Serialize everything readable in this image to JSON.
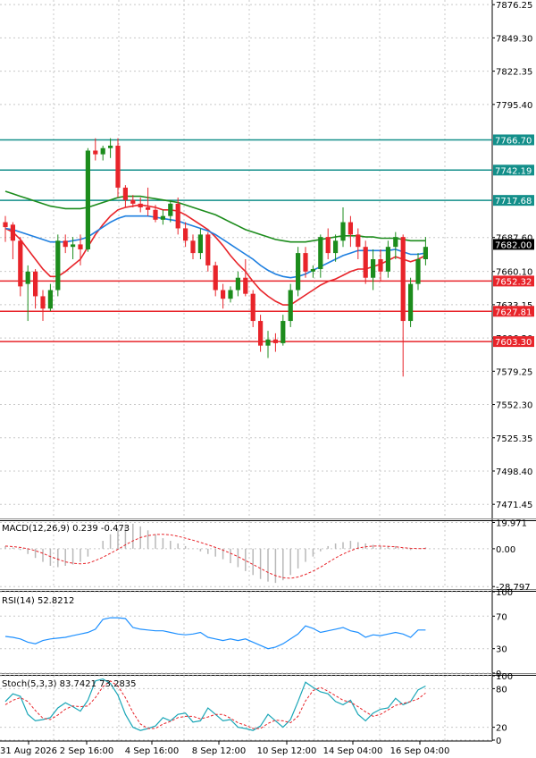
{
  "chart_data": {
    "type": "candlestick",
    "price_axis": {
      "ticks": [
        "7876.25",
        "7849.30",
        "7822.35",
        "7795.40",
        "7687.60",
        "7660.10",
        "7633.15",
        "7606.20",
        "7579.25",
        "7552.30",
        "7525.35",
        "7498.40",
        "7471.45"
      ],
      "range": [
        7460,
        7880
      ]
    },
    "current_price": {
      "label": "7682.00",
      "color": "#000000"
    },
    "levels": [
      {
        "label": "7766.70",
        "value": 7766.7,
        "color": "#138f8a"
      },
      {
        "label": "7742.19",
        "value": 7742.19,
        "color": "#138f8a"
      },
      {
        "label": "7717.68",
        "value": 7717.68,
        "color": "#138f8a"
      },
      {
        "label": "7652.32",
        "value": 7652.32,
        "color": "#e8242a"
      },
      {
        "label": "7627.81",
        "value": 7627.81,
        "color": "#e8242a"
      },
      {
        "label": "7603.30",
        "value": 7603.3,
        "color": "#e8242a"
      }
    ],
    "x_labels": [
      "31 Aug 2026",
      "2 Sep 16:00",
      "4 Sep 16:00",
      "8 Sep 12:00",
      "10 Sep 12:00",
      "14 Sep 04:00",
      "16 Sep 04:00"
    ],
    "candles": [
      [
        7700,
        7705,
        7684,
        7696
      ],
      [
        7698,
        7700,
        7670,
        7685
      ],
      [
        7685,
        7688,
        7640,
        7648
      ],
      [
        7650,
        7665,
        7620,
        7660
      ],
      [
        7660,
        7662,
        7630,
        7640
      ],
      [
        7640,
        7645,
        7620,
        7630
      ],
      [
        7630,
        7650,
        7628,
        7645
      ],
      [
        7645,
        7690,
        7640,
        7685
      ],
      [
        7685,
        7690,
        7675,
        7680
      ],
      [
        7680,
        7688,
        7670,
        7682
      ],
      [
        7682,
        7690,
        7665,
        7678
      ],
      [
        7678,
        7760,
        7676,
        7758
      ],
      [
        7758,
        7768,
        7750,
        7755
      ],
      [
        7755,
        7762,
        7750,
        7760
      ],
      [
        7760,
        7768,
        7752,
        7762
      ],
      [
        7762,
        7768,
        7720,
        7728
      ],
      [
        7728,
        7730,
        7712,
        7718
      ],
      [
        7718,
        7722,
        7712,
        7715
      ],
      [
        7715,
        7720,
        7708,
        7712
      ],
      [
        7712,
        7728,
        7705,
        7710
      ],
      [
        7710,
        7714,
        7700,
        7702
      ],
      [
        7702,
        7710,
        7698,
        7705
      ],
      [
        7705,
        7718,
        7700,
        7715
      ],
      [
        7715,
        7720,
        7690,
        7695
      ],
      [
        7695,
        7700,
        7680,
        7685
      ],
      [
        7685,
        7690,
        7670,
        7675
      ],
      [
        7675,
        7695,
        7670,
        7690
      ],
      [
        7690,
        7692,
        7660,
        7665
      ],
      [
        7665,
        7668,
        7640,
        7645
      ],
      [
        7645,
        7650,
        7630,
        7638
      ],
      [
        7638,
        7648,
        7635,
        7645
      ],
      [
        7645,
        7660,
        7640,
        7655
      ],
      [
        7655,
        7670,
        7640,
        7642
      ],
      [
        7642,
        7645,
        7615,
        7620
      ],
      [
        7620,
        7625,
        7595,
        7600
      ],
      [
        7600,
        7612,
        7590,
        7605
      ],
      [
        7605,
        7610,
        7595,
        7602
      ],
      [
        7602,
        7625,
        7600,
        7620
      ],
      [
        7620,
        7650,
        7615,
        7645
      ],
      [
        7645,
        7680,
        7640,
        7675
      ],
      [
        7675,
        7680,
        7655,
        7660
      ],
      [
        7660,
        7665,
        7655,
        7662
      ],
      [
        7662,
        7690,
        7655,
        7688
      ],
      [
        7688,
        7695,
        7670,
        7675
      ],
      [
        7675,
        7690,
        7668,
        7685
      ],
      [
        7685,
        7712,
        7680,
        7700
      ],
      [
        7700,
        7705,
        7680,
        7690
      ],
      [
        7690,
        7695,
        7670,
        7680
      ],
      [
        7680,
        7685,
        7650,
        7655
      ],
      [
        7655,
        7678,
        7645,
        7670
      ],
      [
        7670,
        7678,
        7652,
        7660
      ],
      [
        7660,
        7685,
        7655,
        7680
      ],
      [
        7680,
        7692,
        7670,
        7688
      ],
      [
        7688,
        7690,
        7575,
        7620
      ],
      [
        7620,
        7655,
        7615,
        7650
      ],
      [
        7650,
        7675,
        7645,
        7670
      ],
      [
        7670,
        7688,
        7665,
        7680
      ]
    ],
    "series": [
      {
        "name": "",
        "color": "#e8242a",
        "values": [
          7695,
          7692,
          7686,
          7678,
          7670,
          7662,
          7656,
          7656,
          7660,
          7665,
          7670,
          7680,
          7690,
          7698,
          7705,
          7710,
          7712,
          7713,
          7714,
          7713,
          7712,
          7710,
          7710,
          7709,
          7706,
          7702,
          7698,
          7694,
          7688,
          7681,
          7673,
          7666,
          7660,
          7652,
          7645,
          7640,
          7636,
          7633,
          7633,
          7637,
          7641,
          7645,
          7649,
          7652,
          7654,
          7657,
          7660,
          7662,
          7662,
          7664,
          7666,
          7669,
          7672,
          7670,
          7668,
          7670,
          7673
        ]
      },
      {
        "name": "",
        "color": "#1e7fe0",
        "values": [
          7695,
          7694,
          7692,
          7690,
          7688,
          7686,
          7684,
          7684,
          7684,
          7685,
          7686,
          7688,
          7692,
          7696,
          7700,
          7703,
          7705,
          7705,
          7705,
          7705,
          7704,
          7703,
          7702,
          7701,
          7699,
          7697,
          7695,
          7693,
          7690,
          7686,
          7682,
          7678,
          7674,
          7670,
          7665,
          7661,
          7658,
          7656,
          7655,
          7656,
          7658,
          7661,
          7664,
          7667,
          7670,
          7673,
          7675,
          7677,
          7677,
          7677,
          7677,
          7677,
          7678,
          7676,
          7674,
          7674,
          7675
        ]
      },
      {
        "name": "",
        "color": "#1c8c1c",
        "values": [
          7725,
          7723,
          7721,
          7719,
          7717,
          7715,
          7713,
          7712,
          7711,
          7711,
          7711,
          7712,
          7714,
          7716,
          7718,
          7720,
          7721,
          7721,
          7721,
          7720,
          7719,
          7718,
          7717,
          7716,
          7714,
          7712,
          7710,
          7708,
          7706,
          7703,
          7700,
          7697,
          7694,
          7692,
          7690,
          7688,
          7686,
          7685,
          7684,
          7684,
          7684,
          7685,
          7686,
          7687,
          7688,
          7689,
          7689,
          7689,
          7688,
          7688,
          7687,
          7687,
          7687,
          7686,
          7685,
          7685,
          7685
        ]
      }
    ],
    "macd": {
      "label": "MACD(12,26,9) 0.239 -0.473",
      "ticks": [
        "19.971",
        "0.00",
        "-28.797"
      ],
      "range": [
        -30,
        21
      ],
      "histogram": [
        2,
        1,
        -1,
        -4,
        -7,
        -10,
        -13,
        -14,
        -13,
        -12,
        -10,
        -6,
        0,
        6,
        11,
        15,
        18,
        19,
        17,
        14,
        11,
        8,
        6,
        4,
        2,
        0,
        -2,
        -4,
        -6,
        -8,
        -11,
        -14,
        -17,
        -20,
        -23,
        -25,
        -26,
        -24,
        -20,
        -15,
        -10,
        -6,
        -2,
        2,
        4,
        5,
        6,
        5,
        4,
        3,
        2,
        2,
        2,
        0,
        -1,
        0,
        1
      ],
      "signal": [
        2,
        1.6,
        1,
        0,
        -1.5,
        -3.5,
        -6,
        -8,
        -10,
        -11,
        -11.5,
        -11,
        -9,
        -6.5,
        -3.5,
        -0.5,
        3,
        6,
        8.5,
        10,
        10.8,
        11,
        10.5,
        9.5,
        8,
        6.5,
        4.8,
        3,
        1,
        -1,
        -3.5,
        -6,
        -9,
        -12,
        -15,
        -18,
        -20.5,
        -22,
        -22.5,
        -21.5,
        -19.5,
        -17,
        -14,
        -10.5,
        -7,
        -4,
        -1.5,
        0.5,
        1.5,
        2,
        2,
        1.8,
        1.5,
        0.8,
        0.3,
        0.1,
        0.2
      ]
    },
    "rsi": {
      "label": "RSI(14) 52.8212",
      "ticks": [
        "100",
        "70",
        "30",
        "0"
      ],
      "range": [
        0,
        100
      ],
      "values": [
        45,
        44,
        42,
        38,
        36,
        40,
        42,
        43,
        44,
        46,
        48,
        50,
        54,
        66,
        68,
        68,
        67,
        56,
        54,
        53,
        52,
        52,
        50,
        48,
        47,
        48,
        50,
        44,
        42,
        40,
        42,
        40,
        42,
        38,
        34,
        30,
        32,
        36,
        42,
        48,
        58,
        55,
        50,
        52,
        54,
        56,
        52,
        50,
        44,
        47,
        46,
        48,
        50,
        48,
        44,
        53,
        53
      ]
    },
    "stoch": {
      "label": "Stoch(5,3,3) 83.7421 73.2835",
      "ticks": [
        "100",
        "80",
        "20",
        "0"
      ],
      "range": [
        0,
        100
      ],
      "k": [
        60,
        72,
        68,
        40,
        30,
        32,
        35,
        50,
        58,
        52,
        45,
        62,
        92,
        95,
        88,
        70,
        40,
        20,
        15,
        18,
        22,
        35,
        30,
        40,
        42,
        28,
        30,
        50,
        40,
        30,
        32,
        20,
        18,
        15,
        22,
        40,
        30,
        20,
        32,
        60,
        90,
        82,
        75,
        72,
        60,
        55,
        62,
        40,
        30,
        42,
        48,
        50,
        65,
        55,
        60,
        78,
        84
      ],
      "d": [
        55,
        62,
        66,
        60,
        46,
        34,
        32,
        39,
        48,
        53,
        52,
        53,
        66,
        83,
        92,
        84,
        66,
        43,
        25,
        18,
        18,
        25,
        29,
        35,
        37,
        37,
        33,
        36,
        40,
        40,
        34,
        27,
        23,
        18,
        18,
        26,
        31,
        30,
        27,
        37,
        61,
        77,
        82,
        76,
        69,
        62,
        59,
        52,
        44,
        37,
        40,
        47,
        54,
        57,
        60,
        64,
        73
      ]
    }
  }
}
